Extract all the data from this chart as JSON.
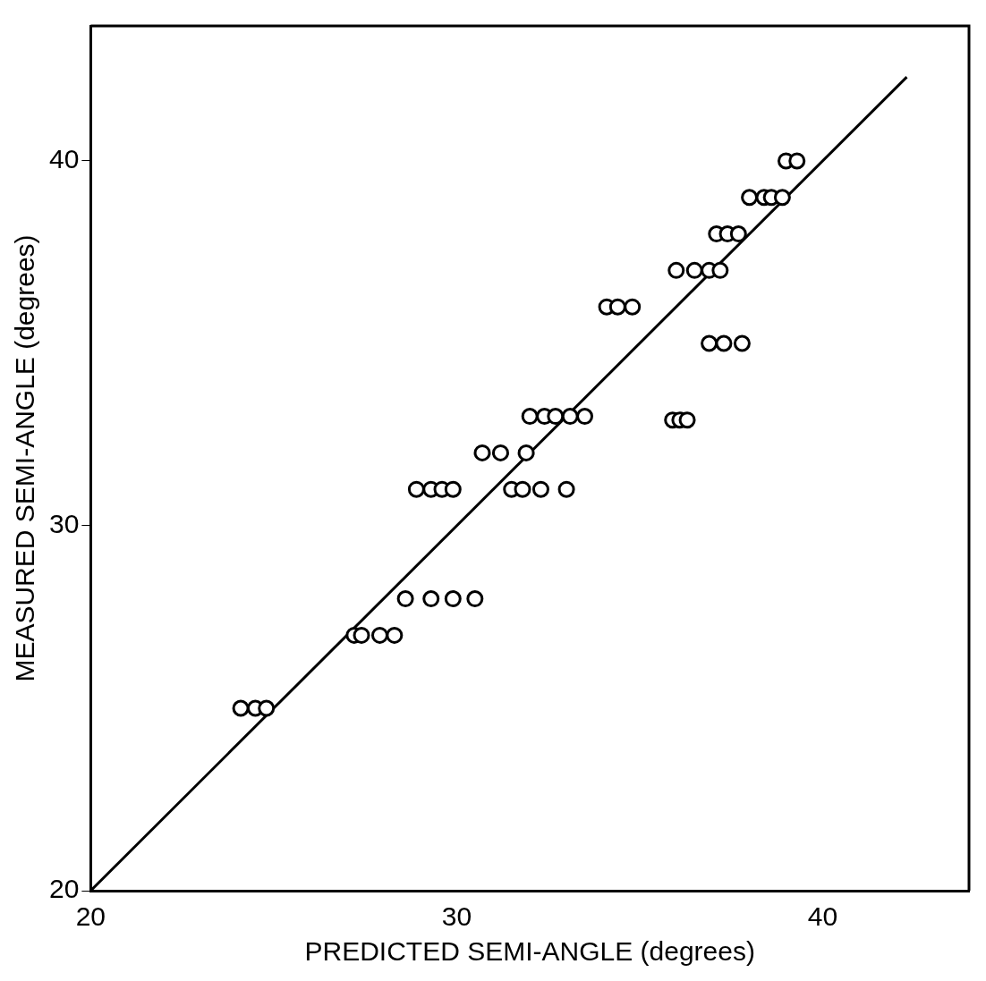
{
  "chart_data": {
    "type": "scatter",
    "xlabel": "PREDICTED SEMI-ANGLE (degrees)",
    "ylabel": "MEASURED SEMI-ANGLE (degrees)",
    "xlim": [
      20,
      44
    ],
    "ylim": [
      20,
      43.7
    ],
    "xticks": [
      20,
      30,
      40
    ],
    "yticks": [
      20,
      30,
      40
    ],
    "grid": false,
    "legend": false,
    "marker": "circle",
    "series": [
      {
        "color": "#000000",
        "x": [
          24.1,
          24.5,
          24.8,
          27.2,
          27.4,
          27.9,
          28.3,
          28.6,
          29.3,
          29.9,
          30.5,
          28.9,
          29.3,
          29.6,
          29.9,
          31.5,
          31.8,
          32.3,
          33.0,
          30.7,
          31.2,
          31.9,
          32.0,
          32.4,
          32.7,
          33.1,
          33.5,
          35.9,
          36.1,
          36.3,
          36.9,
          37.3,
          37.8,
          34.1,
          34.4,
          34.8,
          36.0,
          36.5,
          36.9,
          37.2,
          37.1,
          37.4,
          37.7,
          38.0,
          38.4,
          38.6,
          38.9,
          39.0,
          39.3
        ],
        "values": [
          25,
          25,
          25,
          27,
          27,
          27,
          27,
          28,
          28,
          28,
          28,
          31,
          31,
          31,
          31,
          31,
          31,
          31,
          31,
          32,
          32,
          32,
          33,
          33,
          33,
          33,
          33,
          32.9,
          32.9,
          32.9,
          35,
          35,
          35,
          36,
          36,
          36,
          37,
          37,
          37,
          37,
          38,
          38,
          38,
          39,
          39,
          39,
          39,
          40,
          40
        ]
      },
      {
        "type": "line",
        "color": "#000000",
        "line_style": "solid",
        "marker": "none",
        "x": [
          20,
          42.3
        ],
        "values": [
          20,
          42.3
        ]
      }
    ]
  }
}
